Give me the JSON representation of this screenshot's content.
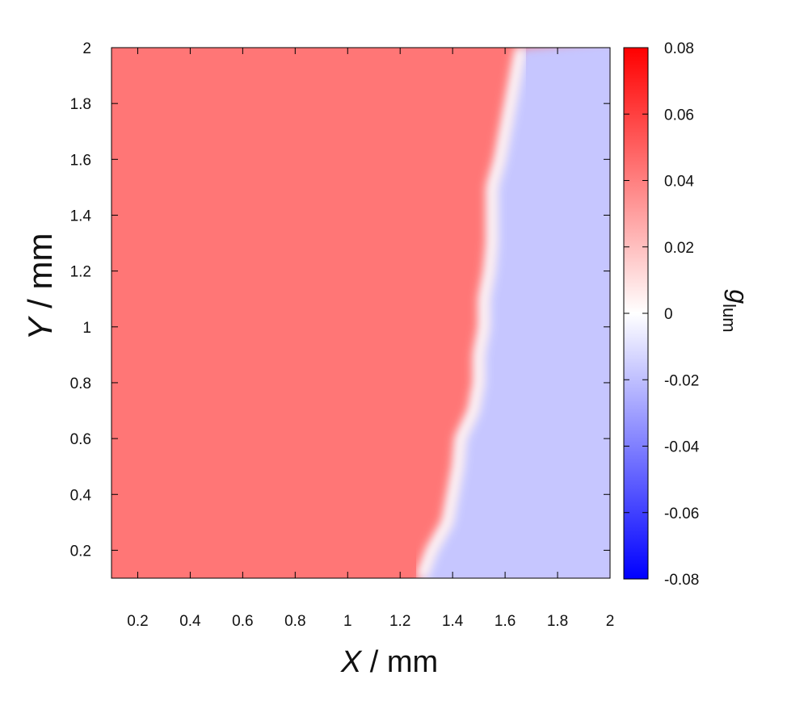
{
  "chart_data": {
    "type": "heatmap",
    "title": "",
    "xlabel_var": "X",
    "xlabel_unit": " / mm",
    "ylabel_var": "Y",
    "ylabel_unit": " / mm",
    "xlim": [
      0.1,
      2.0
    ],
    "ylim": [
      0.1,
      2.0
    ],
    "x_ticks": [
      0.2,
      0.4,
      0.6,
      0.8,
      1,
      1.2,
      1.4,
      1.6,
      1.8,
      2
    ],
    "x_tick_labels": [
      "0.2",
      "0.4",
      "0.6",
      "0.8",
      "1",
      "1.2",
      "1.4",
      "1.6",
      "1.8",
      "2"
    ],
    "y_ticks": [
      0.2,
      0.4,
      0.6,
      0.8,
      1,
      1.2,
      1.4,
      1.6,
      1.8,
      2
    ],
    "y_tick_labels": [
      "0.2",
      "0.4",
      "0.6",
      "0.8",
      "1",
      "1.2",
      "1.4",
      "1.6",
      "1.8",
      "2"
    ],
    "colorbar": {
      "label_main": "g",
      "label_sub": "lum",
      "range": [
        -0.08,
        0.08
      ],
      "ticks": [
        0.08,
        0.06,
        0.04,
        0.02,
        0,
        -0.02,
        -0.04,
        -0.06,
        -0.08
      ],
      "tick_labels": [
        "0.08",
        "0.06",
        "0.04",
        "0.02",
        "0",
        "-0.02",
        "-0.04",
        "-0.06",
        "-0.08"
      ],
      "color_max": "#ff0000",
      "color_mid": "#ffffff",
      "color_min": "#0000ff"
    },
    "boundary": {
      "y": [
        0.1,
        0.2,
        0.3,
        0.4,
        0.5,
        0.6,
        0.7,
        0.8,
        0.9,
        1.0,
        1.1,
        1.2,
        1.3,
        1.4,
        1.5,
        1.6,
        1.7,
        1.8,
        1.9,
        2.0
      ],
      "x": [
        1.28,
        1.32,
        1.38,
        1.4,
        1.42,
        1.43,
        1.48,
        1.5,
        1.5,
        1.52,
        1.52,
        1.54,
        1.55,
        1.55,
        1.55,
        1.58,
        1.6,
        1.62,
        1.64,
        1.66
      ]
    },
    "red_region_level": 0.043,
    "blue_region_level": -0.018,
    "grid": false
  }
}
